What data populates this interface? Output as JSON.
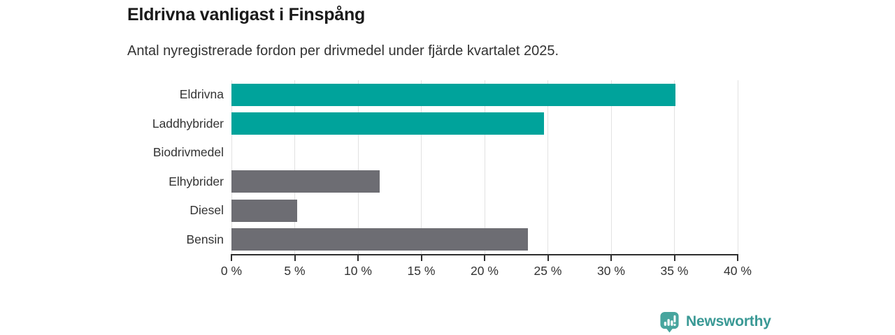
{
  "header": {
    "title": "Eldrivna vanligast i Finspång",
    "subtitle": "Antal nyregistrerade fordon per drivmedel under fjärde kvartalet 2025."
  },
  "chart_data": {
    "type": "bar",
    "orientation": "horizontal",
    "title": "Eldrivna vanligast i Finspång",
    "subtitle": "Antal nyregistrerade fordon per drivmedel under fjärde kvartalet 2025.",
    "categories": [
      "Eldrivna",
      "Laddhybrider",
      "Biodrivmedel",
      "Elhybrider",
      "Diesel",
      "Bensin"
    ],
    "values": [
      35.1,
      24.7,
      0,
      11.7,
      5.2,
      23.4
    ],
    "unit": "%",
    "xlabel": "",
    "ylabel": "",
    "xlim": [
      0,
      40
    ],
    "xticks": [
      0,
      5,
      10,
      15,
      20,
      25,
      30,
      35,
      40
    ],
    "xtick_suffix": " %",
    "grid": true,
    "legend": "none",
    "bar_colors": [
      "#00a39b",
      "#00a39b",
      "#6d6d73",
      "#6d6d73",
      "#6d6d73",
      "#6d6d73"
    ]
  },
  "colors": {
    "highlight_teal": "#00a39b",
    "neutral_gray": "#6d6d73",
    "gridline": "#e2e2e2",
    "axis": "#2e2e2e",
    "text": "#333333",
    "logo_text": "#3a9995",
    "logo_icon": "#47a59e"
  },
  "footer": {
    "brand": "Newsworthy"
  }
}
